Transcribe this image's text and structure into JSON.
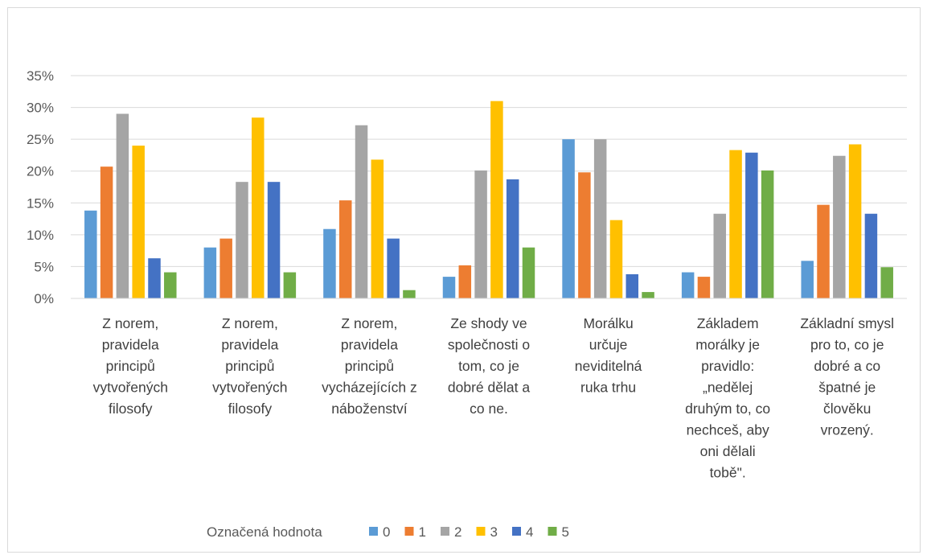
{
  "chart_data": {
    "type": "bar",
    "title": "",
    "xlabel": "",
    "ylabel": "",
    "ylim": [
      0,
      0.35
    ],
    "yticks": [
      "0%",
      "5%",
      "10%",
      "15%",
      "20%",
      "25%",
      "30%",
      "35%"
    ],
    "grid": true,
    "legend_position": "bottom",
    "legend_title": "Označená hodnota",
    "categories": [
      [
        "Z norem,",
        "pravidela",
        "principů",
        "vytvořených",
        "filosofy"
      ],
      [
        "Z norem,",
        "pravidela",
        "principů",
        "vytvořených",
        "filosofy"
      ],
      [
        "Z norem,",
        "pravidela",
        "principů",
        "vycházejících z",
        "náboženství"
      ],
      [
        "Ze shody ve",
        "společnosti o",
        "tom, co je",
        "dobré dělat a",
        "co ne."
      ],
      [
        "Morálku",
        "určuje",
        "neviditelná",
        "ruka trhu"
      ],
      [
        "Základem",
        "morálky je",
        "pravidlo:",
        "„nedělej",
        "druhým to, co",
        "nechceš, aby",
        "oni dělali",
        "tobě\"."
      ],
      [
        "Základní smysl",
        "pro to, co je",
        "dobré a co",
        "špatné je",
        "člověku",
        "vrozený."
      ]
    ],
    "series": [
      {
        "name": "0",
        "color": "#5b9bd5",
        "values": [
          0.138,
          0.08,
          0.109,
          0.034,
          0.25,
          0.041,
          0.059
        ]
      },
      {
        "name": "1",
        "color": "#ed7d31",
        "values": [
          0.207,
          0.094,
          0.154,
          0.052,
          0.198,
          0.034,
          0.147
        ]
      },
      {
        "name": "2",
        "color": "#a5a5a5",
        "values": [
          0.29,
          0.183,
          0.272,
          0.201,
          0.25,
          0.133,
          0.224
        ]
      },
      {
        "name": "3",
        "color": "#ffc000",
        "values": [
          0.24,
          0.284,
          0.218,
          0.31,
          0.123,
          0.233,
          0.242
        ]
      },
      {
        "name": "4",
        "color": "#4472c4",
        "values": [
          0.063,
          0.183,
          0.094,
          0.187,
          0.038,
          0.229,
          0.133
        ]
      },
      {
        "name": "5",
        "color": "#70ad47",
        "values": [
          0.041,
          0.041,
          0.013,
          0.08,
          0.01,
          0.201,
          0.049
        ]
      }
    ]
  }
}
